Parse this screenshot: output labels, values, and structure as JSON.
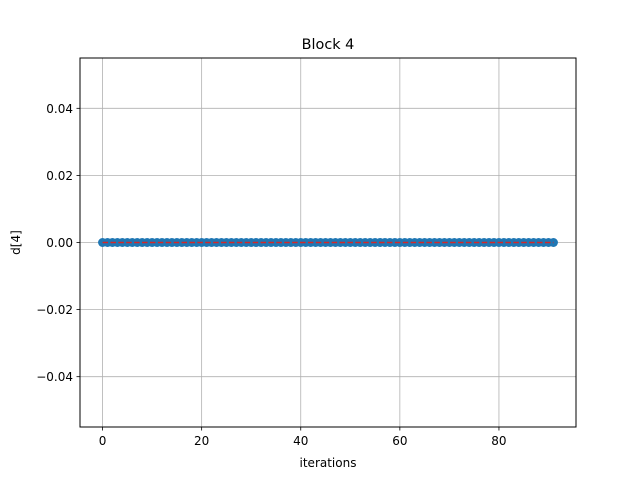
{
  "chart_data": {
    "type": "scatter",
    "title": "Block 4",
    "xlabel": "iterations",
    "ylabel": "d[4]",
    "xlim": [
      -4.55,
      95.55
    ],
    "ylim": [
      -0.055,
      0.055
    ],
    "x_ticks": [
      0,
      20,
      40,
      60,
      80
    ],
    "x_tick_labels": [
      "0",
      "20",
      "40",
      "60",
      "80"
    ],
    "y_ticks": [
      -0.04,
      -0.02,
      0.0,
      0.02,
      0.04
    ],
    "y_tick_labels": [
      "−0.04",
      "−0.02",
      "0.00",
      "0.02",
      "0.04"
    ],
    "grid": true,
    "series": [
      {
        "marker_color": "#1f77b4",
        "x_start": 0,
        "x_end": 91,
        "x_step": 1,
        "y_constant": 0.0
      },
      {
        "type": "line",
        "line_style": "dashed",
        "color": "#d62728",
        "x": [
          0,
          91
        ],
        "y": [
          0.0,
          0.0
        ]
      }
    ]
  }
}
